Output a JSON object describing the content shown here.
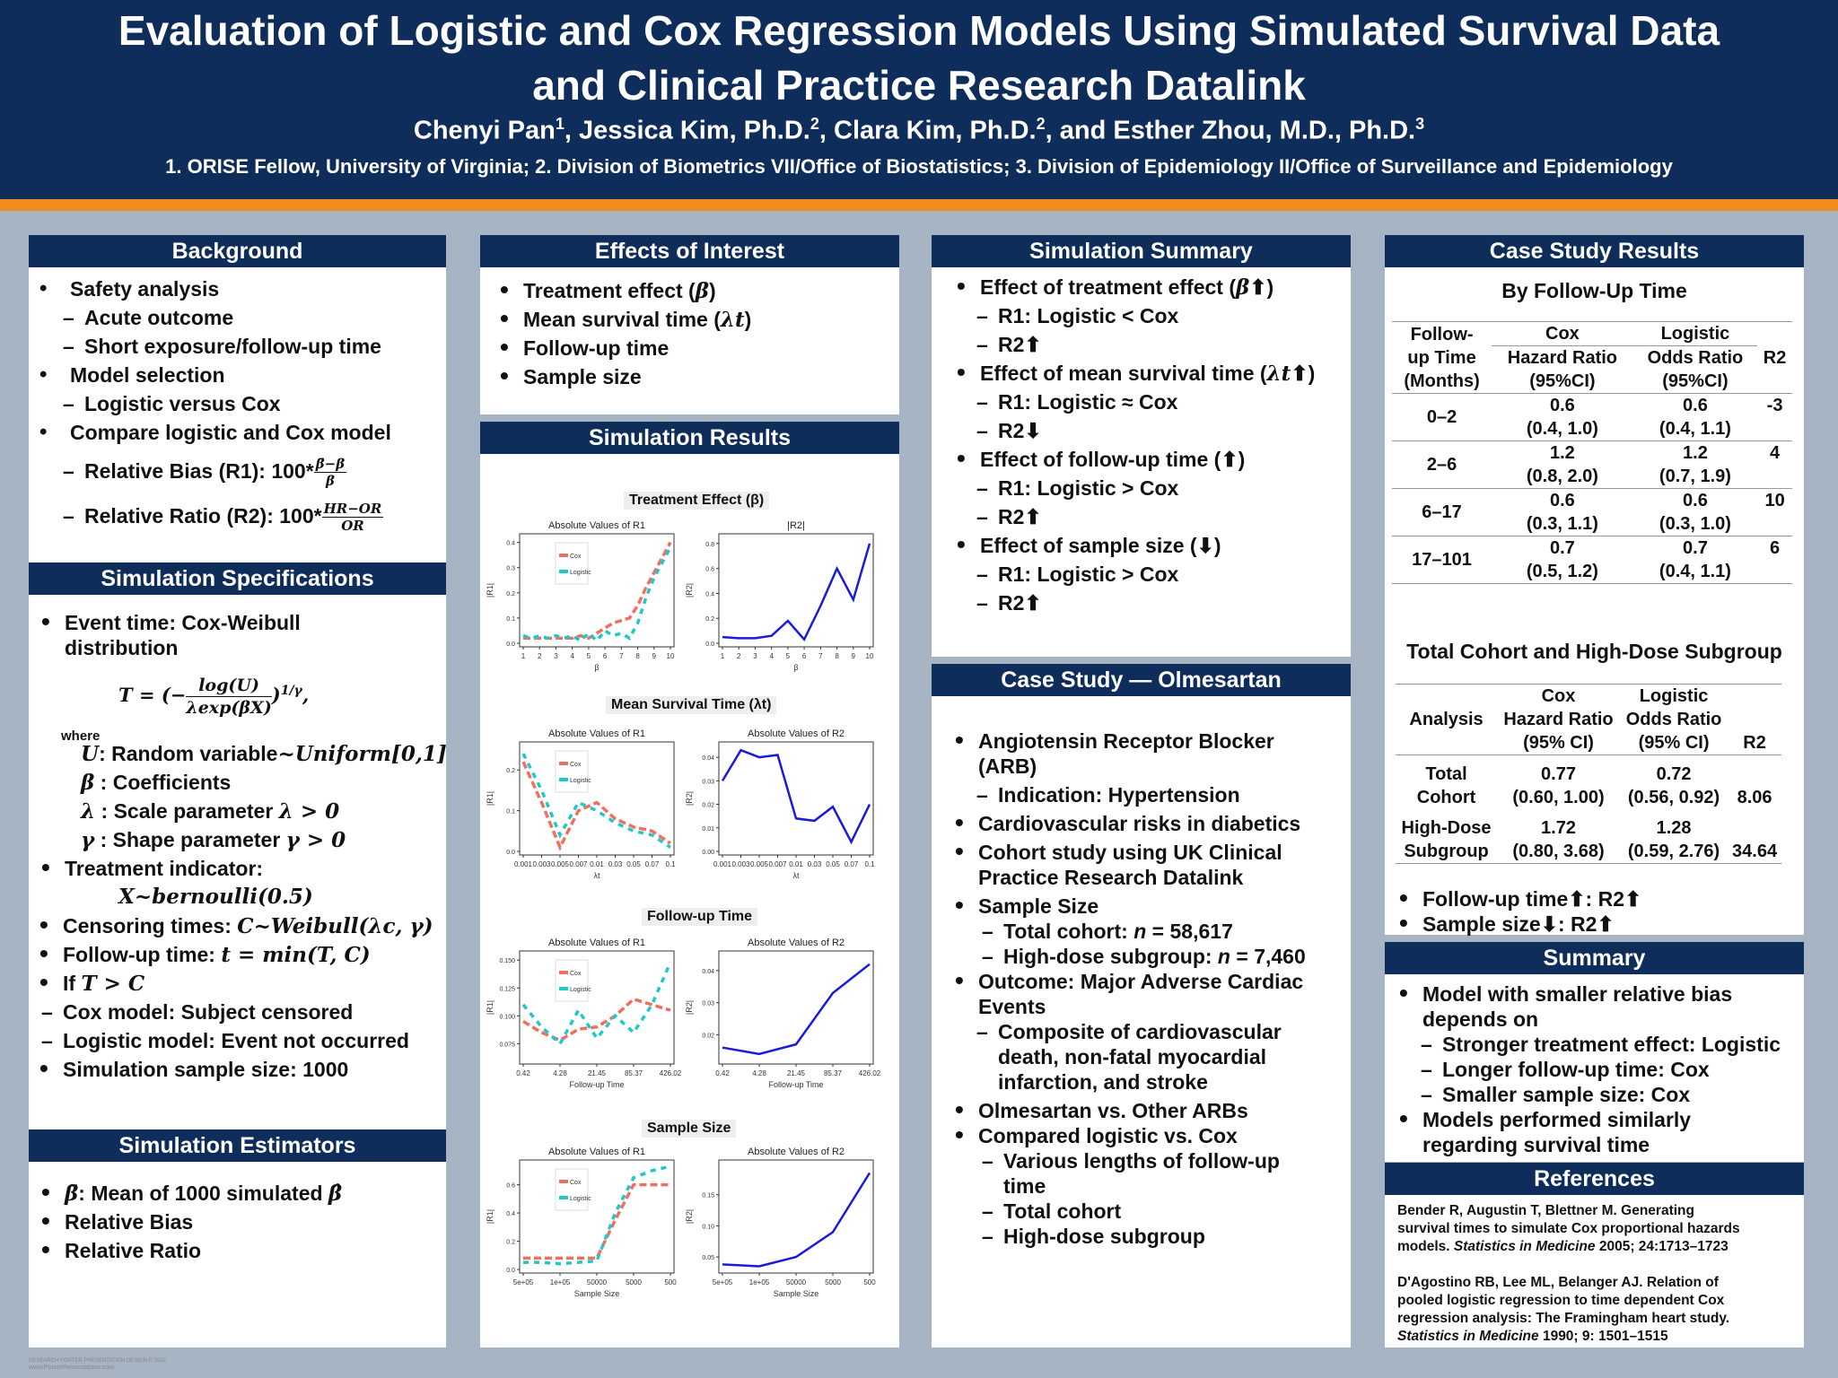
{
  "header": {
    "title_line1": "Evaluation of Logistic and Cox Regression Models Using Simulated Survival Data",
    "title_line2": "and Clinical Practice Research Datalink",
    "authors": [
      {
        "name": "Chenyi Pan",
        "sup": "1",
        "sep": ", "
      },
      {
        "name": "Jessica Kim, Ph.D.",
        "sup": "2",
        "sep": ", "
      },
      {
        "name": "Clara Kim, Ph.D.",
        "sup": "2",
        "sep": ", and "
      },
      {
        "name": "Esther Zhou, M.D., Ph.D.",
        "sup": "3",
        "sep": ""
      }
    ],
    "affiliations": "1. ORISE Fellow, University of Virginia; 2. Division of Biometrics VII/Office of Biostatistics; 3. Division of Epidemiology II/Office of Surveillance and Epidemiology"
  },
  "background": {
    "title": "Background",
    "items": [
      "Safety analysis",
      "Acute outcome",
      "Short exposure/follow-up time",
      "Model selection",
      "Logistic versus Cox",
      "Compare logistic and Cox model"
    ],
    "r1_label": "Relative Bias (R1): 100*",
    "r1_num": "β̄−β",
    "r1_den": "β",
    "r2_label": "Relative Ratio (R2): 100*",
    "r2_num": "HR−OR",
    "r2_den": "OR"
  },
  "sim_spec": {
    "title": "Simulation Specifications",
    "event_time_1": "Event time: Cox-Weibull",
    "event_time_2": "distribution",
    "formula_left": "T = (−",
    "formula_num": "log(U)",
    "formula_den": "λexp(βX)",
    "formula_right": ")",
    "formula_exp": "1/γ",
    "formula_end": ",",
    "where": "where",
    "u_sym": "U",
    "u_def": ": Random variable",
    "u_dist": "~Uniform[0,1]",
    "beta_sym": "β",
    "beta_def": " : Coefficients",
    "lambda_sym": "λ",
    "lambda_def": " : Scale parameter ",
    "lambda_cond": "λ > 0",
    "gamma_sym": "γ",
    "gamma_def": " : Shape parameter ",
    "gamma_cond": "γ > 0",
    "treat": "Treatment indicator:",
    "treat_formula": "X~bernoulli(0.5)",
    "censor_label": "Censoring times: ",
    "censor_formula": "C~Weibull(λc, γ)",
    "followup_label": "Follow-up time:  ",
    "followup_formula": "t = min(T, C)",
    "if_label": "If ",
    "if_formula": "T > C",
    "cox_censored": "Cox model: Subject censored",
    "logistic_event": "Logistic model: Event not occurred",
    "sample": "Simulation sample size: 1000"
  },
  "estimators": {
    "title": "Simulation Estimators",
    "beta_hat_sym": "β̄",
    "mean_text": ": Mean of 1000 simulated ",
    "beta_hat2": "β̂",
    "relative_bias": "Relative Bias",
    "relative_ratio": "Relative Ratio"
  },
  "effects": {
    "title": "Effects of Interest",
    "items": [
      {
        "text": "Treatment effect (",
        "sym": "β",
        "end": ")"
      },
      {
        "text": "Mean survival time (",
        "sym": "λt",
        "end": ")"
      },
      {
        "text": "Follow-up time",
        "sym": "",
        "end": ""
      },
      {
        "text": "Sample size",
        "sym": "",
        "end": ""
      }
    ]
  },
  "sim_results": {
    "title": "Simulation Results",
    "axis_r1": "|R1|",
    "axis_r2": "|R2|",
    "legend_cox": "Cox",
    "legend_logistic": "Logistic",
    "panels": [
      {
        "title": "Treatment Effect (β)",
        "sub_r1": "Absolute Values of R1",
        "sub_r2": "|R2|",
        "xlabel": "β",
        "xticks": [
          "1",
          "2",
          "3",
          "4",
          "5",
          "6",
          "7",
          "8",
          "9",
          "10"
        ],
        "r1_yticks": [
          "0.0",
          "0.1",
          "0.2",
          "0.3",
          "0.4"
        ],
        "r1_ylim": [
          0,
          0.42
        ],
        "r2_yticks": [
          "0.0",
          "0.2",
          "0.4",
          "0.6",
          "0.8"
        ],
        "r2_ylim": [
          0,
          0.85
        ]
      },
      {
        "title": "Mean Survival Time (λt)",
        "sub_r1": "Absolute Values of R1",
        "sub_r2": "Absolute Values of R2",
        "xlabel": "λt",
        "xticks": [
          "0.001",
          "0.003",
          "0.005",
          "0.007",
          "0.01",
          "0.03",
          "0.05",
          "0.07",
          "0.1"
        ],
        "r1_yticks": [
          "0.0",
          "0.1",
          "0.2"
        ],
        "r1_ylim": [
          0,
          0.26
        ],
        "r2_yticks": [
          "0.00",
          "0.01",
          "0.02",
          "0.03",
          "0.04"
        ],
        "r2_ylim": [
          0,
          0.045
        ]
      },
      {
        "title": "Follow-up Time",
        "sub_r1": "Absolute Values of R1",
        "sub_r2": "Absolute Values of R2",
        "xlabel": "Follow-up Time",
        "xticks": [
          "0.42",
          "4.28",
          "21.45",
          "85.37",
          "426.02"
        ],
        "r1_yticks": [
          "0.075",
          "0.100",
          "0.125",
          "0.150"
        ],
        "r1_ylim": [
          0.06,
          0.155
        ],
        "r2_yticks": [
          "0.02",
          "0.03",
          "0.04"
        ],
        "r2_ylim": [
          0.012,
          0.045
        ]
      },
      {
        "title": "Sample Size",
        "sub_r1": "Absolute Values of R1",
        "sub_r2": "Absolute Values of R2",
        "xlabel": "Sample Size",
        "xticks": [
          "5e+05",
          "1e+05",
          "50000",
          "5000",
          "500"
        ],
        "r1_yticks": [
          "0.0",
          "0.2",
          "0.4",
          "0.6"
        ],
        "r1_ylim": [
          0,
          0.75
        ],
        "r2_yticks": [
          "0.05",
          "0.10",
          "0.15"
        ],
        "r2_ylim": [
          0.03,
          0.2
        ]
      }
    ]
  },
  "chart_data": [
    {
      "type": "line",
      "title": "Treatment Effect (β) — Absolute Values of R1",
      "xlabel": "β",
      "ylabel": "|R1|",
      "ylim": [
        0,
        0.42
      ],
      "x": [
        1,
        1.5,
        2,
        2.5,
        3,
        3.5,
        4,
        4.5,
        5,
        5.5,
        6,
        6.5,
        7,
        7.5,
        8,
        8.5,
        9,
        9.5,
        10
      ],
      "series": [
        {
          "name": "Cox",
          "values": [
            0.02,
            0.02,
            0.02,
            0.02,
            0.02,
            0.02,
            0.02,
            0.03,
            0.02,
            0.04,
            0.06,
            0.08,
            0.09,
            0.1,
            0.15,
            0.22,
            0.28,
            0.34,
            0.4
          ]
        },
        {
          "name": "Logistic",
          "values": [
            0.03,
            0.02,
            0.03,
            0.02,
            0.03,
            0.02,
            0.03,
            0.01,
            0.04,
            0.01,
            0.05,
            0.03,
            0.04,
            0.02,
            0.08,
            0.18,
            0.26,
            0.32,
            0.38
          ]
        }
      ]
    },
    {
      "type": "line",
      "title": "Treatment Effect (β) — |R2|",
      "xlabel": "β",
      "ylabel": "|R2|",
      "ylim": [
        0,
        0.85
      ],
      "x": [
        1,
        2,
        3,
        4,
        5,
        6,
        7,
        8,
        9,
        10
      ],
      "series": [
        {
          "name": "R2",
          "values": [
            0.05,
            0.04,
            0.04,
            0.06,
            0.18,
            0.03,
            0.3,
            0.6,
            0.35,
            0.8
          ]
        }
      ]
    },
    {
      "type": "line",
      "title": "Mean Survival Time (λt) — Absolute Values of R1",
      "xlabel": "λt",
      "ylabel": "|R1|",
      "ylim": [
        0,
        0.26
      ],
      "x": [
        1,
        2,
        3,
        4,
        5,
        6,
        7,
        8,
        9
      ],
      "series": [
        {
          "name": "Cox",
          "values": [
            0.22,
            0.12,
            0.01,
            0.1,
            0.12,
            0.08,
            0.06,
            0.05,
            0.02
          ]
        },
        {
          "name": "Logistic",
          "values": [
            0.24,
            0.15,
            0.04,
            0.12,
            0.1,
            0.07,
            0.05,
            0.04,
            0.01
          ]
        }
      ]
    },
    {
      "type": "line",
      "title": "Mean Survival Time (λt) — Absolute Values of R2",
      "xlabel": "λt",
      "ylabel": "|R2|",
      "ylim": [
        0,
        0.045
      ],
      "x": [
        1,
        2,
        3,
        4,
        5,
        6,
        7,
        8,
        9
      ],
      "series": [
        {
          "name": "R2",
          "values": [
            0.03,
            0.043,
            0.04,
            0.041,
            0.014,
            0.013,
            0.019,
            0.004,
            0.02
          ]
        }
      ]
    },
    {
      "type": "line",
      "title": "Follow-up Time — Absolute Values of R1",
      "xlabel": "Follow-up Time",
      "ylabel": "|R1|",
      "ylim": [
        0.06,
        0.155
      ],
      "x": [
        1,
        1.5,
        2,
        2.5,
        3,
        3.5,
        4,
        4.5,
        5
      ],
      "series": [
        {
          "name": "Cox",
          "values": [
            0.095,
            0.085,
            0.078,
            0.088,
            0.09,
            0.1,
            0.115,
            0.11,
            0.105
          ]
        },
        {
          "name": "Logistic",
          "values": [
            0.11,
            0.09,
            0.075,
            0.105,
            0.08,
            0.1,
            0.085,
            0.11,
            0.148
          ]
        }
      ]
    },
    {
      "type": "line",
      "title": "Follow-up Time — Absolute Values of R2",
      "xlabel": "Follow-up Time",
      "ylabel": "|R2|",
      "ylim": [
        0.012,
        0.045
      ],
      "x": [
        1,
        2,
        3,
        4,
        5
      ],
      "series": [
        {
          "name": "R2",
          "values": [
            0.016,
            0.014,
            0.017,
            0.033,
            0.042
          ]
        }
      ]
    },
    {
      "type": "line",
      "title": "Sample Size — Absolute Values of R1",
      "xlabel": "Sample Size",
      "ylabel": "|R1|",
      "ylim": [
        0,
        0.75
      ],
      "x": [
        1,
        1.5,
        2,
        2.5,
        3,
        3.5,
        4,
        4.5,
        5
      ],
      "series": [
        {
          "name": "Cox",
          "values": [
            0.08,
            0.08,
            0.08,
            0.08,
            0.08,
            0.35,
            0.6,
            0.6,
            0.6
          ]
        },
        {
          "name": "Logistic",
          "values": [
            0.05,
            0.05,
            0.04,
            0.05,
            0.06,
            0.4,
            0.65,
            0.7,
            0.73
          ]
        }
      ]
    },
    {
      "type": "line",
      "title": "Sample Size — Absolute Values of R2",
      "xlabel": "Sample Size",
      "ylabel": "|R2|",
      "ylim": [
        0.03,
        0.2
      ],
      "x": [
        1,
        2,
        3,
        4,
        5
      ],
      "series": [
        {
          "name": "R2",
          "values": [
            0.038,
            0.035,
            0.05,
            0.09,
            0.185
          ]
        }
      ]
    }
  ],
  "sim_summary": {
    "title": "Simulation Summary",
    "items": [
      {
        "kind": "dot",
        "text": "Effect of treatment effect (",
        "sym": "β",
        "arrow": "⬆",
        "end": ")"
      },
      {
        "kind": "dash",
        "text": "R1: Logistic < Cox"
      },
      {
        "kind": "dash",
        "text": "R2",
        "arrow": "⬆"
      },
      {
        "kind": "dot",
        "text": "Effect of mean survival time (",
        "sym": "λt",
        "arrow": "⬆",
        "end": ")"
      },
      {
        "kind": "dash",
        "text": "R1: Logistic ≈ Cox"
      },
      {
        "kind": "dash",
        "text": "R2",
        "arrow": "⬇"
      },
      {
        "kind": "dot",
        "text": "Effect of follow-up time (",
        "arrow": "⬆",
        "end": ")"
      },
      {
        "kind": "dash",
        "text": "R1: Logistic > Cox"
      },
      {
        "kind": "dash",
        "text": "R2",
        "arrow": "⬆"
      },
      {
        "kind": "dot",
        "text": "Effect of sample size (",
        "arrow": "⬇",
        "end": ")"
      },
      {
        "kind": "dash",
        "text": "R1: Logistic > Cox"
      },
      {
        "kind": "dash",
        "text": "R2",
        "arrow": "⬆"
      }
    ]
  },
  "case_study": {
    "title": "Case Study — Olmesartan",
    "arb1": "Angiotensin Receptor Blocker",
    "arb2": "(ARB)",
    "indication": "Indication: Hypertension",
    "cv_risks": "Cardiovascular risks in diabetics",
    "cohort1": "Cohort study using UK Clinical",
    "cohort2": "Practice Research Datalink",
    "sample_size": "Sample Size",
    "total_label": "Total cohort: ",
    "n_sym": "n",
    "total_val": " = 58,617",
    "hd_label": "High-dose subgroup: ",
    "hd_val": " = 7,460",
    "outcome1": "Outcome: Major Adverse Cardiac",
    "outcome2": "Events",
    "comp1": "Composite of cardiovascular",
    "comp2": "death, non-fatal myocardial",
    "comp3": "infarction, and stroke",
    "olm": "Olmesartan vs. Other ARBs",
    "compared": "Compared logistic vs. Cox",
    "various1": "Various lengths of follow-up",
    "various2": "time",
    "total_cohort": "Total cohort",
    "hd_subgroup": "High-dose subgroup"
  },
  "case_results": {
    "title": "Case Study Results",
    "by_fu": "By Follow-Up Time",
    "t1_headers": {
      "fu1": "Follow-",
      "fu2": "up Time",
      "fu3": "(Months)",
      "cox": "Cox",
      "logistic": "Logistic",
      "hr": "Hazard Ratio",
      "or": "Odds Ratio",
      "ci": "(95%CI)",
      "r2": "R2"
    },
    "t1_rows": [
      {
        "fu": "0–2",
        "hr": "0.6",
        "hr_ci": "(0.4, 1.0)",
        "or": "0.6",
        "or_ci": "(0.4, 1.1)",
        "r2": "-3"
      },
      {
        "fu": "2–6",
        "hr": "1.2",
        "hr_ci": "(0.8, 2.0)",
        "or": "1.2",
        "or_ci": "(0.7, 1.9)",
        "r2": "4"
      },
      {
        "fu": "6–17",
        "hr": "0.6",
        "hr_ci": "(0.3, 1.1)",
        "or": "0.6",
        "or_ci": "(0.3, 1.0)",
        "r2": "10"
      },
      {
        "fu": "17–101",
        "hr": "0.7",
        "hr_ci": "(0.5, 1.2)",
        "or": "0.7",
        "or_ci": "(0.4, 1.1)",
        "r2": "6"
      }
    ],
    "total_title": "Total Cohort and High-Dose Subgroup",
    "t2_headers": {
      "analysis": "Analysis",
      "cox": "Cox",
      "logistic": "Logistic",
      "hr": "Hazard Ratio",
      "or": "Odds Ratio",
      "ci": "(95% CI)",
      "r2": "R2"
    },
    "t2_rows": [
      {
        "a1": "Total",
        "a2": "Cohort",
        "hr": "0.77",
        "hr_ci": "(0.60, 1.00)",
        "or": "0.72",
        "or_ci": "(0.56, 0.92)",
        "r2": "8.06"
      },
      {
        "a1": "High-Dose",
        "a2": "Subgroup",
        "hr": "1.72",
        "hr_ci": "(0.80, 3.68)",
        "or": "1.28",
        "or_ci": "(0.59, 2.76)",
        "r2": "34.64"
      }
    ],
    "fu_result": "Follow-up time",
    "fu_arrow": "⬆",
    "fu_r2": ": R2",
    "fu_r2_arrow": "⬆",
    "ss_result": "Sample size",
    "ss_arrow": "⬇",
    "ss_r2": ": R2",
    "ss_r2_arrow": "⬆"
  },
  "summary": {
    "title": "Summary",
    "l1": "Model with smaller relative bias",
    "l2": "depends on",
    "l3": "Stronger treatment effect: Logistic",
    "l4": "Longer follow-up time: Cox",
    "l5": "Smaller sample size: Cox",
    "l6": "Models performed similarly",
    "l7": "regarding survival time"
  },
  "references": {
    "title": "References",
    "r1_a": "Bender R, Augustin T, Blettner M. Generating",
    "r1_b": "survival times to simulate Cox proportional hazards",
    "r1_c": "models. ",
    "r1_journal": "Statistics in Medicine",
    "r1_d": " 2005; 24:1713–1723",
    "r2_a": "D'Agostino RB, Lee ML, Belanger AJ. Relation of",
    "r2_b": "pooled logistic regression to time dependent Cox",
    "r2_c": "regression analysis: The Framingham heart study.",
    "r2_journal": "Statistics in Medicine",
    "r2_d": " 1990; 9: 1501–1515"
  },
  "footer": {
    "line1": "RESEARCH POSTER PRESENTATION DESIGN © 2012",
    "line2": "www.PosterPresentations.com"
  }
}
